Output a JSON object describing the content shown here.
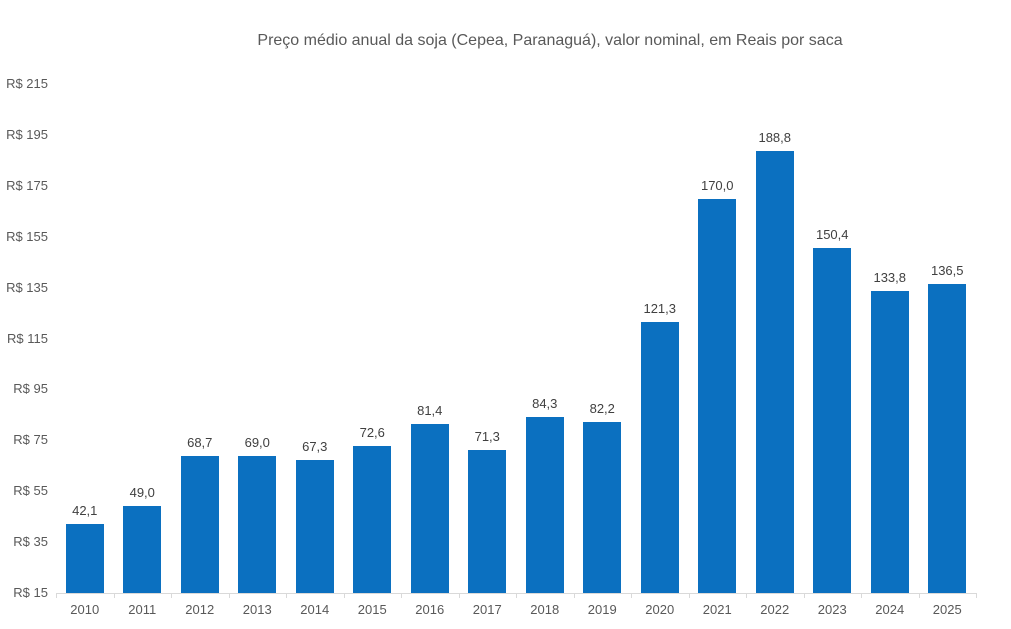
{
  "chart_data": {
    "type": "bar",
    "title": "Preço médio anual da soja (Cepea, Paranaguá), valor nominal, em Reais por saca",
    "categories": [
      "2010",
      "2011",
      "2012",
      "2013",
      "2014",
      "2015",
      "2016",
      "2017",
      "2018",
      "2019",
      "2020",
      "2021",
      "2022",
      "2023",
      "2024",
      "2025"
    ],
    "values": [
      42.1,
      49.0,
      68.7,
      69.0,
      67.3,
      72.6,
      81.4,
      71.3,
      84.3,
      82.2,
      121.3,
      170.0,
      188.8,
      150.4,
      133.8,
      136.5
    ],
    "value_labels": [
      "42,1",
      "49,0",
      "68,7",
      "69,0",
      "67,3",
      "72,6",
      "81,4",
      "71,3",
      "84,3",
      "82,2",
      "121,3",
      "170,0",
      "188,8",
      "150,4",
      "133,8",
      "136,5"
    ],
    "xlabel": "",
    "ylabel": "",
    "ylim": [
      15,
      215
    ],
    "y_ticks": [
      {
        "value": 215,
        "label": "R$ 215"
      },
      {
        "value": 195,
        "label": "R$ 195"
      },
      {
        "value": 175,
        "label": "R$ 175"
      },
      {
        "value": 155,
        "label": "R$ 155"
      },
      {
        "value": 135,
        "label": "R$ 135"
      },
      {
        "value": 115,
        "label": "R$ 115"
      },
      {
        "value": 95,
        "label": "R$ 95"
      },
      {
        "value": 75,
        "label": "R$ 75"
      },
      {
        "value": 55,
        "label": "R$ 55"
      },
      {
        "value": 35,
        "label": "R$ 35"
      },
      {
        "value": 15,
        "label": "R$ 15"
      }
    ],
    "grid": false,
    "legend": false,
    "colors": {
      "bar": "#0B70C0",
      "value_label": "#404040",
      "axis_text": "#595959",
      "axis_line": "#D9D9D9",
      "title_text": "#595959",
      "background": "#FFFFFF"
    }
  }
}
